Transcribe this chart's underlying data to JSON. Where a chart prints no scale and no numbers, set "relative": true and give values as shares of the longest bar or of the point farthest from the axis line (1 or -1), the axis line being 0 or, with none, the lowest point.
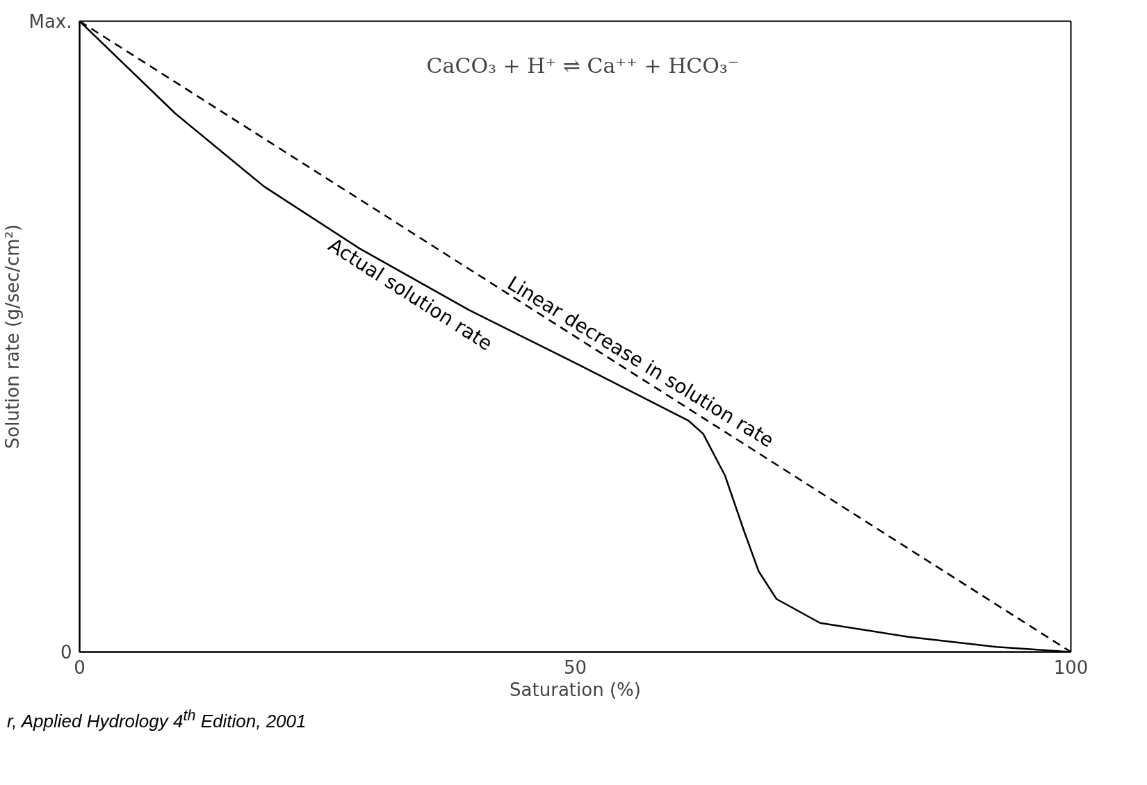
{
  "chart_data": {
    "type": "line",
    "relative": true,
    "xlabel": "Saturation (%)",
    "ylabel": "Solution rate (g/sec/cm²)",
    "xlim": [
      0,
      100
    ],
    "xticks": [
      0,
      50,
      100
    ],
    "grid": false,
    "marker": "none",
    "series": [
      {
        "name": "Actual solution rate",
        "color": "#000000",
        "line_style": "solid",
        "x": [
          0,
          9.7,
          18.6,
          28.2,
          39.3,
          50.4,
          61.4,
          62.9,
          65.1,
          67.0,
          68.5,
          70.3,
          74.7,
          83.6,
          92.5,
          100
        ],
        "values": [
          1,
          0.853,
          0.738,
          0.64,
          0.542,
          0.455,
          0.367,
          0.346,
          0.28,
          0.193,
          0.128,
          0.084,
          0.046,
          0.024,
          0.008,
          0
        ]
      },
      {
        "name": "Linear decrease in solution rate",
        "color": "#000000",
        "line_style": "dashed",
        "x": [
          0,
          100
        ],
        "values": [
          1,
          0
        ]
      }
    ],
    "annotations": [
      "Max.",
      "0",
      "CaCO₃ + H⁺ ⇌ Ca⁺⁺ + HCO₃⁻",
      "r, Applied Hydrology 4$^{th}$ Edition, 2001"
    ]
  }
}
